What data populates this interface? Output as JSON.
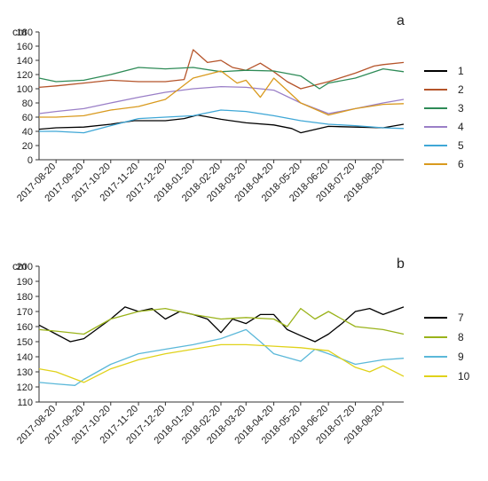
{
  "chart_data": [
    {
      "type": "line",
      "panel_label": "a",
      "ylabel": "cm",
      "ylim": [
        0,
        180
      ],
      "yticks": [
        0,
        20,
        40,
        60,
        80,
        100,
        120,
        140,
        160,
        180
      ],
      "x_start": "2017-08-01",
      "x_end": "2018-09-12",
      "xticks": [
        "2017-08-20",
        "2017-09-20",
        "2017-10-20",
        "2017-11-20",
        "2017-12-20",
        "2018-01-20",
        "2018-02-20",
        "2018-03-20",
        "2018-04-20",
        "2018-05-20",
        "2018-06-20",
        "2018-07-20",
        "2018-08-20"
      ],
      "legend_position": "right",
      "series": [
        {
          "name": "1",
          "color": "#000000",
          "x": [
            "2017-08-01",
            "2017-08-20",
            "2017-09-20",
            "2017-10-20",
            "2017-11-15",
            "2017-12-20",
            "2018-01-10",
            "2018-01-25",
            "2018-02-20",
            "2018-03-20",
            "2018-04-20",
            "2018-05-10",
            "2018-05-20",
            "2018-06-20",
            "2018-07-20",
            "2018-08-20",
            "2018-09-12"
          ],
          "y": [
            43,
            45,
            46,
            50,
            55,
            55,
            58,
            63,
            57,
            52,
            49,
            44,
            38,
            47,
            46,
            45,
            50
          ]
        },
        {
          "name": "2",
          "color": "#b5542a",
          "x": [
            "2017-08-01",
            "2017-08-20",
            "2017-09-20",
            "2017-10-20",
            "2017-11-20",
            "2017-12-20",
            "2018-01-10",
            "2018-01-20",
            "2018-02-05",
            "2018-02-20",
            "2018-03-05",
            "2018-03-20",
            "2018-04-05",
            "2018-04-20",
            "2018-05-05",
            "2018-05-20",
            "2018-06-20",
            "2018-07-20",
            "2018-08-10",
            "2018-08-20",
            "2018-09-12"
          ],
          "y": [
            102,
            104,
            108,
            112,
            110,
            110,
            113,
            155,
            137,
            140,
            130,
            126,
            136,
            124,
            110,
            100,
            110,
            122,
            132,
            134,
            137
          ]
        },
        {
          "name": "3",
          "color": "#2e8b57",
          "x": [
            "2017-08-01",
            "2017-08-20",
            "2017-09-20",
            "2017-10-20",
            "2017-11-20",
            "2017-12-20",
            "2018-01-20",
            "2018-02-20",
            "2018-03-20",
            "2018-04-20",
            "2018-05-20",
            "2018-06-10",
            "2018-06-20",
            "2018-07-20",
            "2018-08-20",
            "2018-09-12"
          ],
          "y": [
            115,
            110,
            112,
            120,
            130,
            128,
            130,
            124,
            126,
            125,
            118,
            100,
            108,
            115,
            128,
            124
          ]
        },
        {
          "name": "4",
          "color": "#9a7fc7",
          "x": [
            "2017-08-01",
            "2017-08-20",
            "2017-09-20",
            "2017-10-20",
            "2017-11-20",
            "2017-12-20",
            "2018-01-20",
            "2018-02-20",
            "2018-03-20",
            "2018-04-20",
            "2018-05-20",
            "2018-06-20",
            "2018-07-20",
            "2018-08-20",
            "2018-09-12"
          ],
          "y": [
            65,
            68,
            72,
            80,
            88,
            95,
            100,
            103,
            102,
            98,
            80,
            65,
            72,
            80,
            85
          ]
        },
        {
          "name": "5",
          "color": "#3fa7d6",
          "x": [
            "2017-08-01",
            "2017-08-20",
            "2017-09-20",
            "2017-10-20",
            "2017-11-20",
            "2017-12-20",
            "2018-01-20",
            "2018-02-20",
            "2018-03-20",
            "2018-04-20",
            "2018-05-20",
            "2018-06-20",
            "2018-07-20",
            "2018-08-20",
            "2018-09-12"
          ],
          "y": [
            40,
            40,
            38,
            48,
            58,
            60,
            62,
            70,
            68,
            62,
            55,
            50,
            48,
            45,
            44
          ]
        },
        {
          "name": "6",
          "color": "#d99a1e",
          "x": [
            "2017-08-01",
            "2017-08-20",
            "2017-09-20",
            "2017-10-20",
            "2017-11-20",
            "2017-12-20",
            "2018-01-20",
            "2018-02-20",
            "2018-03-10",
            "2018-03-20",
            "2018-04-05",
            "2018-04-20",
            "2018-05-20",
            "2018-06-20",
            "2018-07-20",
            "2018-08-20",
            "2018-09-12"
          ],
          "y": [
            60,
            60,
            62,
            70,
            75,
            85,
            115,
            125,
            108,
            112,
            88,
            115,
            80,
            63,
            72,
            78,
            79
          ]
        }
      ]
    },
    {
      "type": "line",
      "panel_label": "b",
      "ylabel": "cm",
      "ylim": [
        110,
        200
      ],
      "yticks": [
        110,
        120,
        130,
        140,
        150,
        160,
        170,
        180,
        190,
        200
      ],
      "x_start": "2017-08-01",
      "x_end": "2018-09-12",
      "xticks": [
        "2017-08-20",
        "2017-09-20",
        "2017-10-20",
        "2017-11-20",
        "2017-12-20",
        "2018-01-20",
        "2018-02-20",
        "2018-03-20",
        "2018-04-20",
        "2018-05-20",
        "2018-06-20",
        "2018-07-20",
        "2018-08-20"
      ],
      "legend_position": "right",
      "series": [
        {
          "name": "7",
          "color": "#000000",
          "x": [
            "2017-08-01",
            "2017-08-20",
            "2017-09-05",
            "2017-09-20",
            "2017-10-20",
            "2017-11-05",
            "2017-11-20",
            "2017-12-05",
            "2017-12-20",
            "2018-01-05",
            "2018-01-20",
            "2018-02-05",
            "2018-02-20",
            "2018-03-05",
            "2018-03-20",
            "2018-04-05",
            "2018-04-20",
            "2018-05-05",
            "2018-05-20",
            "2018-06-05",
            "2018-06-20",
            "2018-07-05",
            "2018-07-20",
            "2018-08-05",
            "2018-08-20",
            "2018-09-12"
          ],
          "y": [
            161,
            155,
            150,
            152,
            165,
            173,
            170,
            172,
            165,
            170,
            168,
            165,
            156,
            165,
            162,
            168,
            168,
            158,
            154,
            150,
            155,
            162,
            170,
            172,
            168,
            173
          ]
        },
        {
          "name": "8",
          "color": "#9ab31a",
          "x": [
            "2017-08-01",
            "2017-08-20",
            "2017-09-20",
            "2017-10-20",
            "2017-11-20",
            "2017-12-20",
            "2018-01-20",
            "2018-02-20",
            "2018-03-20",
            "2018-04-20",
            "2018-05-05",
            "2018-05-20",
            "2018-06-05",
            "2018-06-20",
            "2018-07-20",
            "2018-08-20",
            "2018-09-12"
          ],
          "y": [
            158,
            157,
            155,
            165,
            170,
            172,
            168,
            165,
            166,
            165,
            160,
            172,
            165,
            170,
            160,
            158,
            155
          ]
        },
        {
          "name": "9",
          "color": "#5bb8d9",
          "x": [
            "2017-08-01",
            "2017-08-20",
            "2017-09-10",
            "2017-09-20",
            "2017-10-20",
            "2017-11-20",
            "2017-12-20",
            "2018-01-20",
            "2018-02-20",
            "2018-03-20",
            "2018-04-05",
            "2018-04-20",
            "2018-05-20",
            "2018-06-05",
            "2018-06-20",
            "2018-07-20",
            "2018-08-20",
            "2018-09-12"
          ],
          "y": [
            123,
            122,
            121,
            125,
            135,
            142,
            145,
            148,
            152,
            158,
            150,
            142,
            137,
            145,
            142,
            135,
            138,
            139
          ]
        },
        {
          "name": "10",
          "color": "#e0d21a",
          "x": [
            "2017-08-01",
            "2017-08-20",
            "2017-09-20",
            "2017-10-20",
            "2017-11-20",
            "2017-12-20",
            "2018-01-20",
            "2018-02-20",
            "2018-03-20",
            "2018-04-20",
            "2018-05-20",
            "2018-06-20",
            "2018-07-20",
            "2018-08-05",
            "2018-08-20",
            "2018-09-12"
          ],
          "y": [
            132,
            130,
            123,
            132,
            138,
            142,
            145,
            148,
            148,
            147,
            146,
            144,
            133,
            130,
            134,
            127
          ]
        }
      ]
    }
  ]
}
